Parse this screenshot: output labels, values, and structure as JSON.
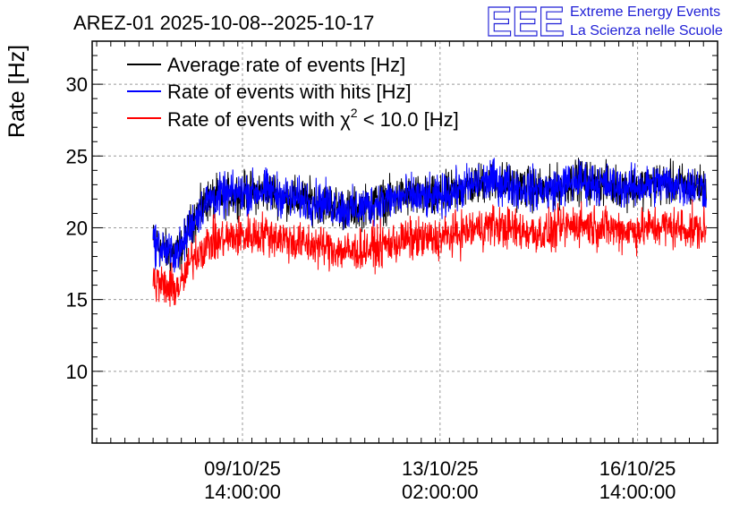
{
  "chart_data": {
    "type": "line",
    "title": "AREZ-01 2025-10-08--2025-10-17",
    "ylabel": "Rate [Hz]",
    "xlabel": "",
    "ylim": [
      5,
      33
    ],
    "xlim_days": [
      -1.08,
      10.0
    ],
    "y_ticks": [
      10,
      15,
      20,
      25,
      30
    ],
    "x_ticks": [
      {
        "day": 1.583,
        "date": "09/10/25",
        "time": "14:00:00"
      },
      {
        "day": 5.083,
        "date": "13/10/25",
        "time": "02:00:00"
      },
      {
        "day": 8.583,
        "date": "16/10/25",
        "time": "14:00:00"
      }
    ],
    "grid": true,
    "legend_position": "top-left",
    "series": [
      {
        "name": "Average rate of events [Hz]",
        "color": "#000000",
        "x_days": [
          0,
          0.3,
          0.5,
          0.7,
          1.0,
          1.5,
          2.0,
          2.5,
          3.0,
          3.5,
          4.0,
          4.5,
          5.0,
          5.5,
          6.0,
          6.5,
          7.0,
          7.5,
          8.0,
          8.5,
          9.0,
          9.8
        ],
        "values": [
          19.0,
          18.2,
          18.5,
          20.5,
          22.0,
          22.4,
          22.6,
          22.0,
          21.8,
          21.2,
          21.8,
          22.2,
          22.0,
          22.8,
          23.3,
          22.8,
          22.6,
          23.3,
          23.0,
          22.8,
          23.1,
          22.8
        ]
      },
      {
        "name": "Rate of events with hits [Hz]",
        "color": "#0000ff",
        "x_days": [
          0,
          0.3,
          0.5,
          0.7,
          1.0,
          1.5,
          2.0,
          2.5,
          3.0,
          3.5,
          4.0,
          4.5,
          5.0,
          5.5,
          6.0,
          6.5,
          7.0,
          7.5,
          8.0,
          8.5,
          9.0,
          9.8
        ],
        "values": [
          19.0,
          18.2,
          18.5,
          20.5,
          22.0,
          22.4,
          22.6,
          22.0,
          21.8,
          21.2,
          21.8,
          22.2,
          22.0,
          22.8,
          23.3,
          22.8,
          22.6,
          23.3,
          23.0,
          22.8,
          23.1,
          22.8
        ]
      },
      {
        "name": "Rate of events with χ² < 10.0 [Hz]",
        "color": "#ff0000",
        "x_days": [
          0,
          0.3,
          0.5,
          0.7,
          1.0,
          1.5,
          2.0,
          2.5,
          3.0,
          3.5,
          4.0,
          4.5,
          5.0,
          5.5,
          6.0,
          6.5,
          7.0,
          7.5,
          8.0,
          8.5,
          9.0,
          9.8
        ],
        "values": [
          16.3,
          15.7,
          16.0,
          18.0,
          19.0,
          19.4,
          19.6,
          19.0,
          18.7,
          18.3,
          18.7,
          19.2,
          19.2,
          19.7,
          20.2,
          19.8,
          19.6,
          20.3,
          20.0,
          19.8,
          20.1,
          19.8
        ]
      }
    ],
    "noise_amplitude": 0.9
  },
  "legend": {
    "items": [
      {
        "text": "Average rate of events [Hz]",
        "color": "#000000"
      },
      {
        "text": "Rate of events with hits [Hz]",
        "color": "#0000ff"
      },
      {
        "text_prefix": "Rate of events with ",
        "chi": "χ",
        "sup": "2",
        "text_suffix": " < 10.0 [Hz]",
        "color": "#ff0000"
      }
    ]
  },
  "logo": {
    "mark": "EEE",
    "line1": "Extreme Energy Events",
    "line2": "La Scienza nelle Scuole",
    "color": "#1f1fd6"
  }
}
